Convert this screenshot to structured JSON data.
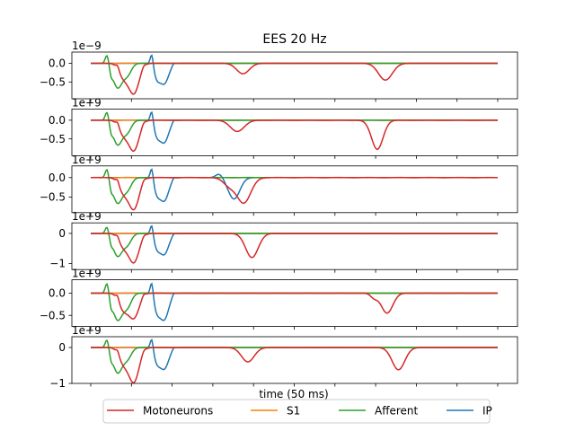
{
  "figure": {
    "title": "EES 20 Hz",
    "xlabel": "time (50 ms)"
  },
  "chart_data": {
    "type": "line",
    "title": "EES 20 Hz",
    "xlabel": "time (50 ms)",
    "x_range": [
      0,
      50
    ],
    "colors": {
      "Motoneurons": "#d62728",
      "S1": "#ff7f0e",
      "Afferent": "#2ca02c",
      "IP": "#1f77b4"
    },
    "legend": {
      "location": "bottom-center",
      "entries": [
        "Motoneurons",
        "S1",
        "Afferent",
        "IP"
      ]
    },
    "panels": [
      {
        "ylim": [
          -0.95,
          0.3
        ],
        "yticks": [
          0.0,
          -0.5
        ],
        "ytick_labels": [
          "0.0",
          "−0.5"
        ],
        "offset_text": "1e−9",
        "events": {
          "Afferent": [
            [
              2.0,
              0.25,
              0.3
            ],
            [
              2.5,
              -0.15,
              0.25
            ],
            [
              3.3,
              -0.65,
              0.8
            ],
            [
              4.5,
              -0.3,
              0.7
            ]
          ],
          "Motoneurons": [
            [
              3.3,
              0.1,
              0.25
            ],
            [
              4.0,
              -0.35,
              0.8
            ],
            [
              5.3,
              -0.8,
              0.9
            ],
            [
              6.5,
              0.05,
              0.3
            ],
            [
              18.7,
              -0.28,
              1.1
            ],
            [
              36.2,
              -0.45,
              1.2
            ]
          ],
          "IP": [
            [
              7.5,
              0.3,
              0.25
            ],
            [
              8.1,
              -0.3,
              0.5
            ],
            [
              9.0,
              -0.55,
              0.8
            ],
            [
              10.2,
              0.05,
              0.25
            ]
          ]
        }
      },
      {
        "ylim": [
          -0.95,
          0.3
        ],
        "yticks": [
          0.0,
          -0.5
        ],
        "ytick_labels": [
          "0.0",
          "−0.5"
        ],
        "offset_text": "1e+9",
        "events": {
          "Afferent": [
            [
              2.0,
              0.25,
              0.3
            ],
            [
              2.5,
              -0.15,
              0.25
            ],
            [
              3.3,
              -0.65,
              0.8
            ],
            [
              4.5,
              -0.3,
              0.7
            ]
          ],
          "Motoneurons": [
            [
              3.3,
              0.1,
              0.25
            ],
            [
              4.0,
              -0.35,
              0.8
            ],
            [
              5.3,
              -0.8,
              0.9
            ],
            [
              6.5,
              0.05,
              0.3
            ],
            [
              18.0,
              -0.3,
              1.2
            ],
            [
              35.2,
              -0.78,
              1.0
            ]
          ],
          "IP": [
            [
              7.5,
              0.3,
              0.25
            ],
            [
              8.1,
              -0.3,
              0.5
            ],
            [
              9.0,
              -0.6,
              0.8
            ],
            [
              10.2,
              0.05,
              0.25
            ]
          ]
        }
      },
      {
        "ylim": [
          -0.9,
          0.3
        ],
        "yticks": [
          0.0,
          -0.5
        ],
        "ytick_labels": [
          "0.0",
          "−0.5"
        ],
        "offset_text": "1e+9",
        "events": {
          "Afferent": [
            [
              2.0,
              0.25,
              0.3
            ],
            [
              2.5,
              -0.15,
              0.25
            ],
            [
              3.3,
              -0.65,
              0.8
            ],
            [
              4.5,
              -0.3,
              0.7
            ]
          ],
          "Motoneurons": [
            [
              3.3,
              0.1,
              0.25
            ],
            [
              4.0,
              -0.35,
              0.8
            ],
            [
              5.3,
              -0.8,
              0.9
            ],
            [
              6.5,
              0.05,
              0.3
            ],
            [
              17.0,
              -0.2,
              1.0
            ],
            [
              18.8,
              -0.65,
              1.2
            ]
          ],
          "IP": [
            [
              7.5,
              0.3,
              0.25
            ],
            [
              8.1,
              -0.3,
              0.5
            ],
            [
              9.0,
              -0.6,
              0.8
            ],
            [
              10.2,
              0.05,
              0.25
            ],
            [
              15.8,
              0.1,
              0.6
            ],
            [
              17.6,
              -0.55,
              1.0
            ]
          ]
        }
      },
      {
        "ylim": [
          -1.2,
          0.35
        ],
        "yticks": [
          0,
          -1
        ],
        "ytick_labels": [
          "0",
          "−1"
        ],
        "offset_text": "1e+9",
        "events": {
          "Afferent": [
            [
              2.0,
              0.25,
              0.3
            ],
            [
              2.5,
              -0.15,
              0.25
            ],
            [
              3.3,
              -0.75,
              0.8
            ],
            [
              4.5,
              -0.35,
              0.7
            ]
          ],
          "Motoneurons": [
            [
              3.3,
              0.1,
              0.25
            ],
            [
              4.0,
              -0.4,
              0.8
            ],
            [
              5.3,
              -0.95,
              0.9
            ],
            [
              6.5,
              0.05,
              0.3
            ],
            [
              19.8,
              -0.8,
              1.1
            ]
          ],
          "IP": [
            [
              7.5,
              0.35,
              0.25
            ],
            [
              8.1,
              -0.35,
              0.5
            ],
            [
              9.0,
              -0.7,
              0.8
            ],
            [
              10.2,
              0.05,
              0.25
            ]
          ]
        }
      },
      {
        "ylim": [
          -0.75,
          0.3
        ],
        "yticks": [
          0.0,
          -0.5
        ],
        "ytick_labels": [
          "0.0",
          "−0.5"
        ],
        "offset_text": "1e+9",
        "events": {
          "Afferent": [
            [
              2.0,
              0.25,
              0.3
            ],
            [
              2.5,
              -0.15,
              0.25
            ],
            [
              3.3,
              -0.6,
              0.8
            ],
            [
              4.5,
              -0.3,
              0.7
            ]
          ],
          "Motoneurons": [
            [
              3.3,
              0.1,
              0.25
            ],
            [
              4.0,
              -0.35,
              0.8
            ],
            [
              5.3,
              -0.55,
              0.9
            ],
            [
              6.5,
              0.05,
              0.3
            ],
            [
              34.8,
              -0.1,
              0.6
            ],
            [
              36.4,
              -0.45,
              1.0
            ]
          ],
          "IP": [
            [
              7.5,
              0.3,
              0.25
            ],
            [
              8.1,
              -0.3,
              0.5
            ],
            [
              9.0,
              -0.6,
              0.8
            ],
            [
              10.2,
              0.05,
              0.25
            ]
          ]
        }
      },
      {
        "ylim": [
          -1.0,
          0.3
        ],
        "yticks": [
          0,
          -1
        ],
        "ytick_labels": [
          "0",
          "−1"
        ],
        "offset_text": "1e+9",
        "events": {
          "Afferent": [
            [
              2.0,
              0.25,
              0.3
            ],
            [
              2.5,
              -0.15,
              0.25
            ],
            [
              3.3,
              -0.7,
              0.8
            ],
            [
              4.5,
              -0.3,
              0.7
            ]
          ],
          "Motoneurons": [
            [
              3.3,
              0.1,
              0.25
            ],
            [
              4.0,
              -0.4,
              0.8
            ],
            [
              5.3,
              -0.95,
              0.9
            ],
            [
              6.5,
              0.05,
              0.3
            ],
            [
              19.3,
              -0.4,
              1.1
            ],
            [
              37.8,
              -0.62,
              1.1
            ]
          ],
          "IP": [
            [
              7.5,
              0.3,
              0.25
            ],
            [
              8.1,
              -0.3,
              0.5
            ],
            [
              9.0,
              -0.6,
              0.8
            ],
            [
              10.2,
              0.05,
              0.25
            ]
          ]
        }
      }
    ]
  }
}
